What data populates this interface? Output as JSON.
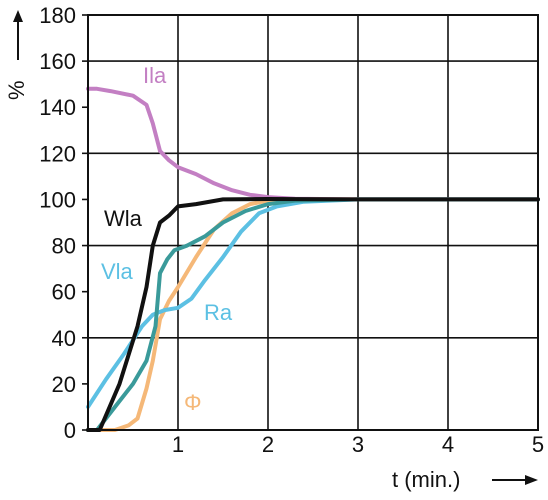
{
  "chart_data": {
    "type": "line",
    "xlabel": "t (min.)",
    "ylabel": "%",
    "xlim": [
      0,
      5
    ],
    "ylim": [
      0,
      180
    ],
    "x_ticks": [
      "1",
      "2",
      "3",
      "4",
      "5"
    ],
    "y_ticks": [
      "0",
      "20",
      "40",
      "60",
      "80",
      "100",
      "120",
      "140",
      "160",
      "180"
    ],
    "grid": true,
    "series": [
      {
        "name": "Ila",
        "color": "#c37fc3",
        "points": [
          [
            0,
            148
          ],
          [
            0.1,
            148
          ],
          [
            0.25,
            147
          ],
          [
            0.5,
            145
          ],
          [
            0.65,
            141
          ],
          [
            0.72,
            133
          ],
          [
            0.8,
            121
          ],
          [
            0.9,
            117
          ],
          [
            1.0,
            114
          ],
          [
            1.2,
            111
          ],
          [
            1.4,
            107
          ],
          [
            1.6,
            104
          ],
          [
            1.8,
            102
          ],
          [
            2.0,
            101
          ],
          [
            2.3,
            100.3
          ],
          [
            3,
            100
          ],
          [
            5,
            100
          ]
        ]
      },
      {
        "name": "Wla",
        "color": "#111111",
        "points": [
          [
            0,
            0
          ],
          [
            0.13,
            0
          ],
          [
            0.35,
            20
          ],
          [
            0.55,
            45
          ],
          [
            0.65,
            62
          ],
          [
            0.72,
            80
          ],
          [
            0.8,
            90
          ],
          [
            0.9,
            93
          ],
          [
            1.0,
            97
          ],
          [
            1.2,
            98
          ],
          [
            1.5,
            100
          ],
          [
            2.0,
            100.2
          ],
          [
            3,
            100
          ],
          [
            5,
            100
          ]
        ]
      },
      {
        "name": "Vla",
        "color": "#3a9a9a",
        "points": [
          [
            0,
            0
          ],
          [
            0.1,
            0
          ],
          [
            0.3,
            10
          ],
          [
            0.5,
            20
          ],
          [
            0.65,
            30
          ],
          [
            0.75,
            45
          ],
          [
            0.8,
            68
          ],
          [
            0.88,
            74
          ],
          [
            0.96,
            78
          ],
          [
            1.1,
            80
          ],
          [
            1.3,
            84
          ],
          [
            1.5,
            90
          ],
          [
            1.75,
            95
          ],
          [
            2.0,
            98
          ],
          [
            2.3,
            99.5
          ],
          [
            3,
            100
          ],
          [
            5,
            100
          ]
        ]
      },
      {
        "name": "Ra",
        "color": "#5cc0e3",
        "points": [
          [
            0,
            10
          ],
          [
            0.2,
            22
          ],
          [
            0.4,
            33
          ],
          [
            0.6,
            45
          ],
          [
            0.72,
            50
          ],
          [
            0.85,
            52
          ],
          [
            1.0,
            53
          ],
          [
            1.15,
            57
          ],
          [
            1.3,
            65
          ],
          [
            1.5,
            75
          ],
          [
            1.7,
            86
          ],
          [
            1.9,
            94
          ],
          [
            2.1,
            97
          ],
          [
            2.4,
            99
          ],
          [
            3,
            100
          ],
          [
            5,
            100
          ]
        ]
      },
      {
        "name": "Φ",
        "color": "#f5b878",
        "points": [
          [
            0,
            0
          ],
          [
            0.3,
            0
          ],
          [
            0.45,
            2
          ],
          [
            0.55,
            5
          ],
          [
            0.65,
            18
          ],
          [
            0.72,
            30
          ],
          [
            0.8,
            48
          ],
          [
            0.9,
            56
          ],
          [
            1.0,
            62
          ],
          [
            1.2,
            75
          ],
          [
            1.4,
            87
          ],
          [
            1.6,
            94
          ],
          [
            1.8,
            98
          ],
          [
            2.0,
            99.5
          ],
          [
            2.5,
            100
          ],
          [
            5,
            100
          ]
        ]
      }
    ],
    "annotations": [
      "Ila",
      "Wla",
      "Vla",
      "Ra",
      "Φ"
    ]
  }
}
